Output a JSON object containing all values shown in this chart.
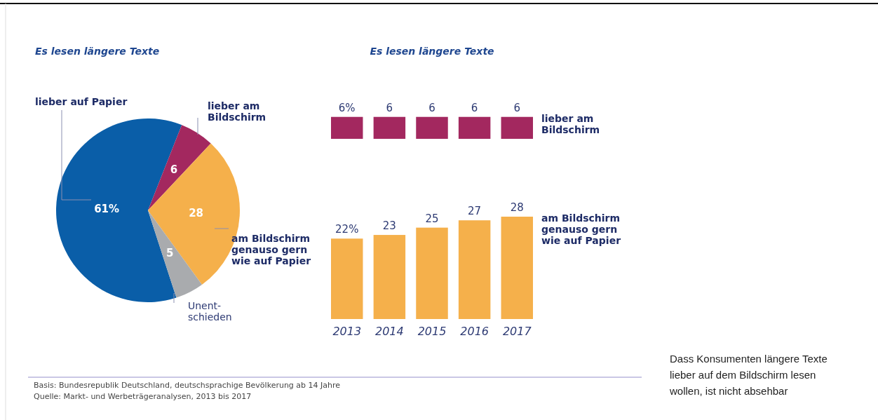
{
  "chart_data": [
    {
      "type": "pie",
      "title": "Es lesen längere Texte",
      "categories": [
        "lieber auf Papier",
        "lieber am\nBildschirm",
        "am Bildschirm\ngenauso gern\nwie auf Papier",
        "Unent-\nschieden"
      ],
      "values": [
        61,
        6,
        28,
        5
      ],
      "colors": [
        "#0a5ea8",
        "#a3285f",
        "#f5b04b",
        "#a9abae"
      ],
      "value_labels": [
        "61%",
        "6",
        "28",
        "5"
      ],
      "annotations": [
        "Basis: Bundesrepublik Deutschland, deutschsprachige Bevölkerung ab 14 Jahre",
        "Quelle: Markt- und Werbeträgeranalysen, 2013 bis 2017"
      ]
    },
    {
      "type": "bar",
      "title": "Es lesen längere Texte",
      "categories": [
        "2013",
        "2014",
        "2015",
        "2016",
        "2017"
      ],
      "tick_labels": false,
      "series": [
        {
          "name": "lieber am\nBildschirm",
          "color": "#a3285f",
          "values": [
            6,
            6,
            6,
            6,
            6
          ],
          "value_labels": [
            "6%",
            "6",
            "6",
            "6",
            "6"
          ]
        }
      ]
    },
    {
      "type": "bar",
      "categories": [
        "2013",
        "2014",
        "2015",
        "2016",
        "2017"
      ],
      "series": [
        {
          "name": "am Bildschirm\ngenauso gern\nwie auf Papier",
          "color": "#f5b04b",
          "values": [
            22,
            23,
            25,
            27,
            28
          ],
          "value_labels": [
            "22%",
            "23",
            "25",
            "27",
            "28"
          ]
        }
      ],
      "annotations": [
        "Dass Konsumenten längere Texte\nlieber auf dem Bildschirm lesen\nwollen, ist nicht absehbar"
      ]
    }
  ]
}
